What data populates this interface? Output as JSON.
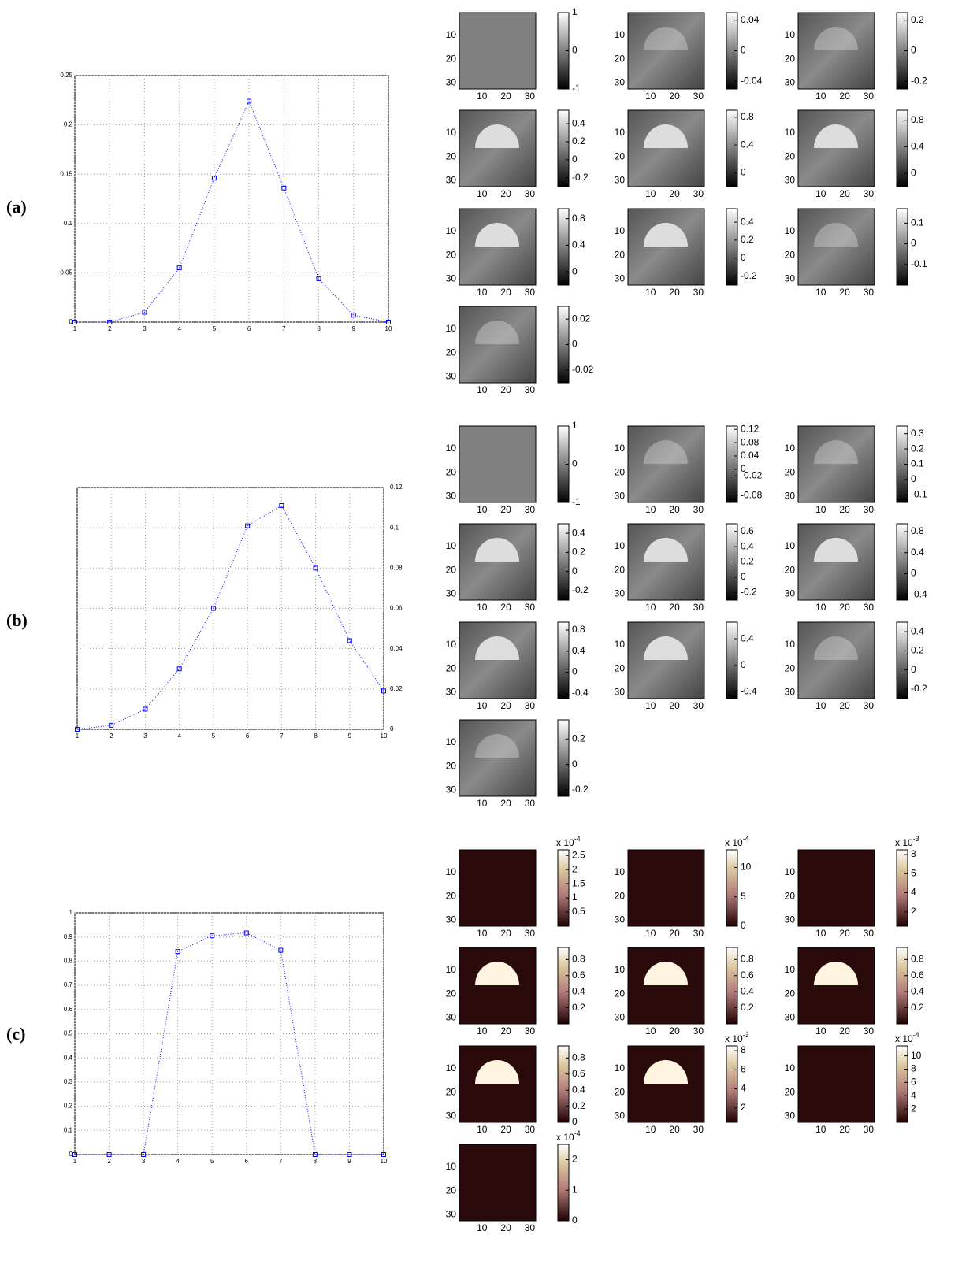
{
  "chart_data": [
    {
      "type": "line",
      "label": "(a)",
      "x": [
        1,
        2,
        3,
        4,
        5,
        6,
        7,
        8,
        9,
        10
      ],
      "values": [
        0,
        0,
        0.01,
        0.055,
        0.146,
        0.224,
        0.136,
        0.044,
        0.007,
        0
      ],
      "color": "#0000ff",
      "xlim": [
        1,
        10
      ],
      "xticks": [
        1,
        2,
        3,
        4,
        5,
        6,
        7,
        8,
        9,
        10
      ],
      "ylim": [
        0,
        0.25
      ],
      "yticks": [
        0,
        0.05,
        0.1,
        0.15,
        0.2,
        0.25
      ],
      "grid": true,
      "y_axis_side": "left"
    },
    {
      "type": "line",
      "label": "(b)",
      "x": [
        1,
        2,
        3,
        4,
        5,
        6,
        7,
        8,
        9,
        10
      ],
      "values": [
        0,
        0.002,
        0.01,
        0.03,
        0.06,
        0.101,
        0.111,
        0.08,
        0.044,
        0.019
      ],
      "color": "#0000ff",
      "xlim": [
        1,
        10
      ],
      "xticks": [
        1,
        2,
        3,
        4,
        5,
        6,
        7,
        8,
        9,
        10
      ],
      "ylim": [
        0,
        0.12
      ],
      "yticks": [
        0,
        0.02,
        0.04,
        0.06,
        0.08,
        0.1,
        0.12
      ],
      "grid": true,
      "y_axis_side": "right"
    },
    {
      "type": "line",
      "label": "(c)",
      "x": [
        1,
        2,
        3,
        4,
        5,
        6,
        7,
        8,
        9,
        10
      ],
      "values": [
        0,
        0,
        0,
        0.84,
        0.905,
        0.917,
        0.845,
        0,
        0,
        0
      ],
      "color": "#0000ff",
      "xlim": [
        1,
        10
      ],
      "xticks": [
        1,
        2,
        3,
        4,
        5,
        6,
        7,
        8,
        9,
        10
      ],
      "ylim": [
        0,
        1
      ],
      "yticks": [
        0,
        0.1,
        0.2,
        0.3,
        0.4,
        0.5,
        0.6,
        0.7,
        0.8,
        0.9,
        1
      ],
      "grid": true,
      "y_axis_side": "left"
    }
  ],
  "panel_groups": [
    {
      "cmap": "gray",
      "image_lim": [
        0.5,
        32.5
      ],
      "image_ticks": [
        10,
        20,
        30
      ],
      "panels": [
        {
          "clim": [
            -1,
            1
          ],
          "ticks": [
            -1,
            0,
            1
          ]
        },
        {
          "clim": [
            -0.05,
            0.05
          ],
          "ticks": [
            -0.04,
            0,
            0.04
          ]
        },
        {
          "clim": [
            -0.25,
            0.25
          ],
          "ticks": [
            -0.2,
            0,
            0.2
          ]
        },
        {
          "clim": [
            -0.3,
            0.55
          ],
          "ticks": [
            -0.2,
            0,
            0.2,
            0.4
          ]
        },
        {
          "clim": [
            -0.2,
            0.9
          ],
          "ticks": [
            0,
            0.4,
            0.8
          ]
        },
        {
          "clim": [
            -0.2,
            0.95
          ],
          "ticks": [
            0,
            0.4,
            0.8
          ]
        },
        {
          "clim": [
            -0.2,
            0.95
          ],
          "ticks": [
            0,
            0.4,
            0.8
          ]
        },
        {
          "clim": [
            -0.3,
            0.55
          ],
          "ticks": [
            -0.2,
            0,
            0.2,
            0.4
          ]
        },
        {
          "clim": [
            -0.2,
            0.17
          ],
          "ticks": [
            -0.1,
            0,
            0.1
          ]
        },
        {
          "clim": [
            -0.03,
            0.03
          ],
          "ticks": [
            -0.02,
            0,
            0.02
          ]
        }
      ]
    },
    {
      "cmap": "gray",
      "image_lim": [
        0.5,
        32.5
      ],
      "image_ticks": [
        10,
        20,
        30
      ],
      "panels": [
        {
          "clim": [
            -1,
            1
          ],
          "ticks": [
            -1,
            0,
            1
          ]
        },
        {
          "clim": [
            -0.1,
            0.13
          ],
          "ticks": [
            -0.08,
            -0.02,
            0,
            0.04,
            0.08,
            0.12
          ]
        },
        {
          "clim": [
            -0.15,
            0.35
          ],
          "ticks": [
            -0.1,
            0,
            0.1,
            0.2,
            0.3
          ]
        },
        {
          "clim": [
            -0.3,
            0.5
          ],
          "ticks": [
            -0.2,
            0,
            0.2,
            0.4
          ]
        },
        {
          "clim": [
            -0.3,
            0.7
          ],
          "ticks": [
            -0.2,
            0,
            0.2,
            0.4,
            0.6
          ]
        },
        {
          "clim": [
            -0.5,
            0.95
          ],
          "ticks": [
            -0.4,
            0,
            0.4,
            0.8
          ]
        },
        {
          "clim": [
            -0.5,
            0.95
          ],
          "ticks": [
            -0.4,
            0,
            0.4,
            0.8
          ]
        },
        {
          "clim": [
            -0.5,
            0.65
          ],
          "ticks": [
            -0.4,
            0,
            0.4
          ]
        },
        {
          "clim": [
            -0.3,
            0.5
          ],
          "ticks": [
            -0.2,
            0,
            0.2,
            0.4
          ]
        },
        {
          "clim": [
            -0.25,
            0.35
          ],
          "ticks": [
            -0.2,
            0,
            0.2
          ]
        }
      ]
    },
    {
      "cmap": "pink",
      "image_lim": [
        0.5,
        32.5
      ],
      "image_ticks": [
        10,
        20,
        30
      ],
      "panels": [
        {
          "clim": [
            0,
            2.7
          ],
          "ticks": [
            0.5,
            1,
            1.5,
            2,
            2.5
          ],
          "multiplier": "x 10",
          "exponent": -4
        },
        {
          "clim": [
            0,
            13
          ],
          "ticks": [
            0,
            5,
            10
          ],
          "multiplier": "x 10",
          "exponent": -4
        },
        {
          "clim": [
            0.5,
            8.5
          ],
          "ticks": [
            2,
            4,
            6,
            8
          ],
          "multiplier": "x 10",
          "exponent": -3
        },
        {
          "clim": [
            0,
            0.95
          ],
          "ticks": [
            0.2,
            0.4,
            0.6,
            0.8
          ]
        },
        {
          "clim": [
            0,
            0.95
          ],
          "ticks": [
            0.2,
            0.4,
            0.6,
            0.8
          ]
        },
        {
          "clim": [
            0,
            0.95
          ],
          "ticks": [
            0.2,
            0.4,
            0.6,
            0.8
          ]
        },
        {
          "clim": [
            0,
            0.95
          ],
          "ticks": [
            0,
            0.2,
            0.4,
            0.6,
            0.8
          ]
        },
        {
          "clim": [
            0.5,
            8.5
          ],
          "ticks": [
            2,
            4,
            6,
            8
          ],
          "multiplier": "x 10",
          "exponent": -3
        },
        {
          "clim": [
            0,
            11.5
          ],
          "ticks": [
            2,
            4,
            6,
            8,
            10
          ],
          "multiplier": "x 10",
          "exponent": -4
        },
        {
          "clim": [
            0,
            2.5
          ],
          "ticks": [
            0,
            1,
            2
          ],
          "multiplier": "x 10",
          "exponent": -4
        }
      ]
    }
  ]
}
